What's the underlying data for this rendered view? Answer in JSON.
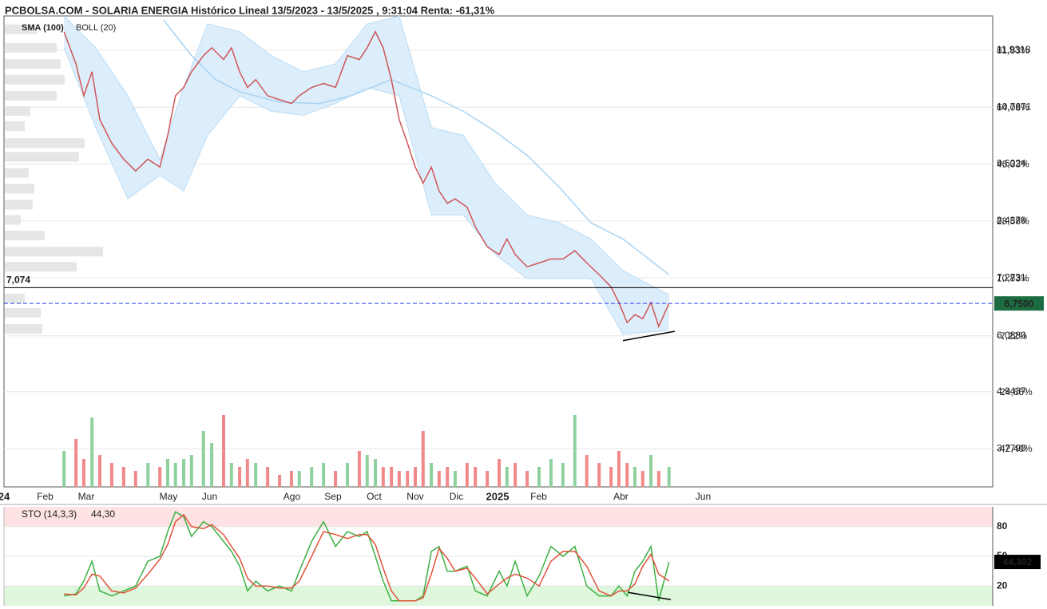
{
  "chart_data": [
    {
      "type": "line",
      "title": "PCBOLSA.COM - SOLARIA ENERGIA Histórico Lineal 13/5/2023 - 13/5/2025 , 9:31:04 Renta: -61,31%",
      "xlim": [
        0,
        24.04
      ],
      "xticks": [
        {
          "value": 0,
          "label": "24",
          "bold": true
        },
        {
          "value": 1,
          "label": "Feb"
        },
        {
          "value": 2,
          "label": "Mar"
        },
        {
          "value": 4,
          "label": "May"
        },
        {
          "value": 5,
          "label": "Jun"
        },
        {
          "value": 7,
          "label": "Ago"
        },
        {
          "value": 8,
          "label": "Sep"
        },
        {
          "value": 9,
          "label": "Oct"
        },
        {
          "value": 10,
          "label": "Nov"
        },
        {
          "value": 11,
          "label": "Dic"
        },
        {
          "value": 12,
          "label": "2025",
          "bold": true
        },
        {
          "value": 13,
          "label": "Feb"
        },
        {
          "value": 15,
          "label": "Abr"
        },
        {
          "value": 17,
          "label": "Jun"
        }
      ],
      "ylim": [
        2.997,
        12.632
      ],
      "yticks": [
        {
          "value": 11.9318,
          "label": "11,9318"
        },
        {
          "value": 10.7671,
          "label": "10,7671"
        },
        {
          "value": 9.6024,
          "label": "9,6024"
        },
        {
          "value": 8.4378,
          "label": "8,4378"
        },
        {
          "value": 7.2731,
          "label": "7,2731"
        },
        {
          "value": 6.088,
          "label": "6,0880"
        },
        {
          "value": 4.9437,
          "label": "4,9437"
        },
        {
          "value": 3.779,
          "label": "3,7790"
        }
      ],
      "y2lim": [
        -54.33,
        92.49
      ],
      "y2ticks": [
        {
          "value": 81.83,
          "label": "81,83%"
        },
        {
          "value": 64.08,
          "label": "64,08%"
        },
        {
          "value": 46.33,
          "label": "46,33%"
        },
        {
          "value": 28.58,
          "label": "28,58%"
        },
        {
          "value": 10.83,
          "label": "10,83%"
        },
        {
          "value": -7.22,
          "label": "-7,22%"
        },
        {
          "value": -24.66,
          "label": "-24,66%"
        },
        {
          "value": -42.4,
          "label": "-42,40%"
        }
      ],
      "y2_colors": {
        "positive": "#1e8a4c",
        "negative": "#e53935"
      },
      "grid": true,
      "x": [
        1.46,
        1.75,
        1.94,
        2.14,
        2.33,
        2.62,
        2.91,
        3.2,
        3.5,
        3.79,
        3.98,
        4.17,
        4.37,
        4.56,
        4.85,
        5.05,
        5.34,
        5.53,
        5.73,
        5.92,
        6.12,
        6.41,
        6.7,
        6.99,
        7.18,
        7.48,
        7.77,
        8.06,
        8.35,
        8.64,
        8.83,
        9.03,
        9.22,
        9.42,
        9.61,
        9.81,
        10.0,
        10.19,
        10.39,
        10.58,
        10.78,
        10.97,
        11.26,
        11.46,
        11.75,
        12.04,
        12.23,
        12.43,
        12.72,
        13.01,
        13.3,
        13.59,
        13.88,
        14.17,
        14.47,
        14.76,
        14.95,
        15.15,
        15.34,
        15.53,
        15.73,
        15.92,
        16.17
      ],
      "values": [
        12.31,
        11.65,
        11.0,
        11.49,
        10.51,
        10.03,
        9.7,
        9.46,
        9.7,
        9.54,
        10.19,
        11.0,
        11.17,
        11.49,
        11.82,
        11.98,
        11.74,
        11.98,
        11.49,
        11.17,
        11.33,
        11.0,
        10.92,
        10.84,
        11.0,
        11.17,
        11.25,
        11.17,
        11.82,
        11.74,
        11.98,
        12.31,
        11.98,
        11.33,
        10.51,
        10.03,
        9.54,
        9.21,
        9.54,
        9.05,
        8.8,
        8.89,
        8.72,
        8.32,
        7.91,
        7.75,
        8.07,
        7.75,
        7.5,
        7.58,
        7.66,
        7.66,
        7.83,
        7.58,
        7.34,
        7.09,
        6.77,
        6.36,
        6.52,
        6.44,
        6.77,
        6.28,
        6.75
      ],
      "color": "#cf5656",
      "series": [
        {
          "name": "SMA (100)",
          "color": "#a9d4f2",
          "x": [
            3.88,
            4.56,
            5.15,
            5.73,
            6.7,
            7.67,
            8.45,
            9.42,
            10.39,
            11.17,
            11.94,
            12.72,
            13.5,
            14.27,
            15.05,
            16.17
          ],
          "values": [
            12.55,
            11.82,
            11.33,
            11.08,
            10.87,
            10.84,
            11.0,
            11.33,
            11.0,
            10.68,
            10.27,
            9.78,
            9.13,
            8.4,
            8.07,
            7.34
          ]
        }
      ],
      "band": {
        "name": "BOLL (20)",
        "color": "#c9c9c9",
        "fill": "#dcedfb",
        "edge": "#bcdcf3",
        "x": [
          1.46,
          2.23,
          3.01,
          3.79,
          4.37,
          4.95,
          5.73,
          6.5,
          7.28,
          8.06,
          8.83,
          9.61,
          10.39,
          11.17,
          11.94,
          12.72,
          13.5,
          14.27,
          15.05,
          16.17
        ],
        "upper": [
          12.63,
          11.98,
          11.0,
          9.7,
          11.17,
          12.47,
          12.31,
          11.82,
          11.49,
          11.65,
          12.47,
          12.63,
          10.35,
          10.19,
          9.21,
          8.56,
          8.4,
          8.07,
          7.42,
          6.93
        ],
        "lower": [
          11.98,
          10.35,
          8.89,
          9.37,
          9.05,
          10.19,
          11.0,
          10.68,
          10.6,
          10.84,
          11.17,
          11.0,
          8.56,
          8.56,
          7.75,
          7.26,
          7.26,
          7.26,
          6.12,
          6.2
        ]
      },
      "volume": {
        "values": [
          45,
          60,
          35,
          87,
          40,
          30,
          25,
          20,
          30,
          25,
          35,
          30,
          35,
          40,
          70,
          55,
          90,
          30,
          25,
          35,
          30,
          25,
          15,
          20,
          20,
          25,
          30,
          20,
          30,
          45,
          40,
          35,
          25,
          25,
          20,
          20,
          25,
          70,
          30,
          20,
          25,
          20,
          30,
          25,
          20,
          35,
          25,
          30,
          20,
          25,
          35,
          30,
          90,
          40,
          30,
          25,
          45,
          30,
          25,
          20,
          40,
          20,
          25
        ],
        "up_color": "#8fd19e",
        "down_color": "#f08a8a"
      },
      "volume_profile": {
        "color": "#e6e6e6",
        "prices": [
          12.36,
          11.98,
          11.65,
          11.33,
          11.0,
          10.69,
          10.38,
          10.03,
          9.75,
          9.42,
          9.1,
          8.77,
          8.46,
          8.14,
          7.81,
          7.5,
          6.85,
          6.56,
          6.23
        ],
        "values": [
          40,
          65,
          70,
          75,
          65,
          32,
          25,
          100,
          93,
          30,
          37,
          35,
          20,
          50,
          123,
          90,
          25,
          45,
          47
        ]
      },
      "hline": {
        "value": 7.074,
        "label": "7,074",
        "color": "#000000"
      },
      "last": {
        "value": 6.75,
        "label": "6,7500",
        "color": "#1d6b41",
        "line_color": "#3344ee"
      },
      "trendline": {
        "x": [
          15.05,
          16.31
        ],
        "values": [
          5.99,
          6.18
        ],
        "color": "#000000"
      }
    },
    {
      "type": "line",
      "label": "STO (14,3,3)",
      "header_value": {
        "value": 44.3,
        "label": "44,30"
      },
      "xlim": [
        0,
        24.04
      ],
      "ylim": [
        0,
        100
      ],
      "yticks": [
        80,
        50,
        20
      ],
      "ytick_colors": [
        "#d00000",
        "#333333",
        "#138a13"
      ],
      "zones": [
        {
          "from": 80,
          "to": 100,
          "color": "#fde3e3"
        },
        {
          "from": 0,
          "to": 20,
          "color": "#dff7dc"
        }
      ],
      "x": [
        1.46,
        1.75,
        1.94,
        2.14,
        2.33,
        2.62,
        2.91,
        3.2,
        3.5,
        3.79,
        3.98,
        4.17,
        4.37,
        4.56,
        4.85,
        5.05,
        5.34,
        5.53,
        5.73,
        5.92,
        6.12,
        6.41,
        6.7,
        6.99,
        7.18,
        7.48,
        7.77,
        8.06,
        8.35,
        8.64,
        8.83,
        9.03,
        9.22,
        9.42,
        9.61,
        9.81,
        10.0,
        10.19,
        10.39,
        10.58,
        10.78,
        10.97,
        11.26,
        11.46,
        11.75,
        12.04,
        12.23,
        12.43,
        12.72,
        13.01,
        13.3,
        13.59,
        13.88,
        14.17,
        14.47,
        14.76,
        14.95,
        15.15,
        15.34,
        15.53,
        15.73,
        15.92,
        16.17
      ],
      "series": [
        {
          "color": "#3cb043",
          "values": [
            10,
            12,
            25,
            45,
            15,
            10,
            15,
            20,
            45,
            50,
            75,
            95,
            90,
            70,
            85,
            80,
            65,
            55,
            40,
            15,
            25,
            15,
            20,
            15,
            35,
            65,
            85,
            60,
            75,
            70,
            75,
            50,
            25,
            5,
            5,
            5,
            5,
            10,
            55,
            60,
            35,
            35,
            40,
            15,
            10,
            35,
            20,
            45,
            10,
            30,
            60,
            50,
            60,
            20,
            10,
            10,
            20,
            10,
            35,
            45,
            60,
            5,
            44.3
          ]
        },
        {
          "color": "#e0533b",
          "values": [
            12,
            11,
            18,
            32,
            30,
            15,
            13,
            18,
            32,
            47,
            62,
            85,
            92,
            80,
            78,
            82,
            72,
            60,
            48,
            28,
            20,
            20,
            18,
            18,
            25,
            50,
            75,
            72,
            68,
            72,
            72,
            62,
            38,
            15,
            5,
            5,
            5,
            8,
            32,
            58,
            48,
            35,
            38,
            28,
            12,
            22,
            28,
            32,
            28,
            20,
            45,
            55,
            55,
            40,
            15,
            10,
            15,
            15,
            22,
            40,
            52,
            32,
            25
          ]
        }
      ],
      "last": {
        "value": 44.302,
        "label": "44,302",
        "color": "#000000"
      },
      "trendline": {
        "x": [
          15.18,
          16.21
        ],
        "values": [
          13.5,
          6.2
        ],
        "color": "#000000"
      }
    }
  ]
}
